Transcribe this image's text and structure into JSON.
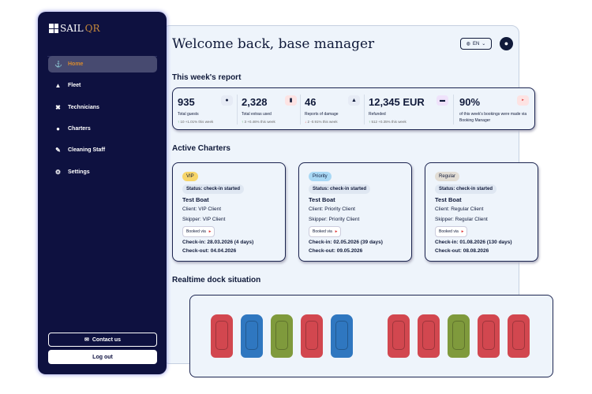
{
  "sidebar": {
    "logo": "SAILQR",
    "items": [
      {
        "label": "Home",
        "icon": "anchor-icon"
      },
      {
        "label": "Fleet",
        "icon": "sailboat-icon"
      },
      {
        "label": "Technicians",
        "icon": "tools-icon"
      },
      {
        "label": "Charters",
        "icon": "globe-icon"
      },
      {
        "label": "Cleaning Staff",
        "icon": "brush-icon"
      },
      {
        "label": "Settings",
        "icon": "gear-icon"
      }
    ],
    "contact": "Contact us",
    "logout": "Log out"
  },
  "header": {
    "title": "Welcome back, base manager",
    "lang": "EN"
  },
  "report": {
    "title": "This week's report",
    "stats": [
      {
        "value": "935",
        "label": "Total guests",
        "delta": "10",
        "pct": "+1.01% this week",
        "dir": "up"
      },
      {
        "value": "2,328",
        "label": "Total extras used",
        "delta": "3",
        "pct": "+0.46% this week",
        "dir": "up"
      },
      {
        "value": "46",
        "label": "Reports of damage",
        "delta": "2",
        "pct": "-0.91% this week",
        "dir": "down"
      },
      {
        "value": "12,345 EUR",
        "label": "Refunded",
        "delta": "512",
        "pct": "+0.35% this week",
        "dir": "up"
      }
    ],
    "bm": {
      "value": "90%",
      "label": "of this week's bookings were made via",
      "label2": "Booking Manager"
    }
  },
  "charters": {
    "title": "Active Charters",
    "booked_via": "Booked via",
    "cards": [
      {
        "tier": "VIP",
        "status": "Status: check-in started",
        "boat": "Test Boat",
        "client": "Client: VIP Client",
        "skipper": "Skipper: VIP Client",
        "checkin": "Check-in: 28.03.2026 (4 days)",
        "checkout": "Check-out: 04.04.2026",
        "color": "#f7d56a"
      },
      {
        "tier": "Priority",
        "status": "Status: check-in started",
        "boat": "Test Boat",
        "client": "Client: Priority Client",
        "skipper": "Skipper: Priority Client",
        "checkin": "Check-in: 02.05.2026 (39 days)",
        "checkout": "Check-out: 09.05.2026",
        "color": "#a9d8f5"
      },
      {
        "tier": "Regular",
        "status": "Status: check-in started",
        "boat": "Test Boat",
        "client": "Client: Regular Client",
        "skipper": "Skipper: Regular Client",
        "checkin": "Check-in: 01.08.2026 (130 days)",
        "checkout": "Check-out: 08.08.2026",
        "color": "#e2ddd5"
      }
    ]
  },
  "dock": {
    "title": "Realtime dock situation",
    "boats": [
      "red",
      "blue",
      "green",
      "red",
      "blue",
      "red",
      "red",
      "green",
      "red",
      "red"
    ]
  },
  "colors": {
    "red": "#d2474f",
    "blue": "#2f77c0",
    "green": "#7f9a3c"
  }
}
